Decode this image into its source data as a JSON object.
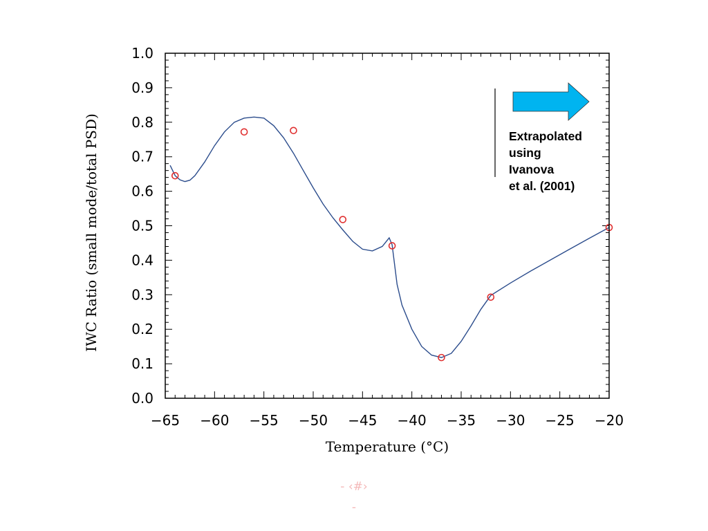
{
  "chart_data": {
    "type": "line",
    "title": "",
    "xlabel": "Temperature (°C)",
    "ylabel": "IWC Ratio (small mode/total PSD)",
    "xlim": [
      -65,
      -20
    ],
    "ylim": [
      0.0,
      1.0
    ],
    "x_ticks": [
      -65,
      -60,
      -55,
      -50,
      -45,
      -40,
      -35,
      -30,
      -25,
      -20
    ],
    "x_tick_labels": [
      "−65",
      "−60",
      "−55",
      "−50",
      "−45",
      "−40",
      "−35",
      "−30",
      "−25",
      "−20"
    ],
    "y_ticks": [
      0.0,
      0.1,
      0.2,
      0.3,
      0.4,
      0.5,
      0.6,
      0.7,
      0.8,
      0.9,
      1.0
    ],
    "y_tick_labels": [
      "0.0",
      "0.1",
      "0.2",
      "0.3",
      "0.4",
      "0.5",
      "0.6",
      "0.7",
      "0.8",
      "0.9",
      "1.0"
    ],
    "grid": false,
    "series": [
      {
        "kind": "scatter",
        "marker": "open-circle",
        "color": "#e03030",
        "x": [
          -64,
          -57,
          -52,
          -47,
          -42,
          -37,
          -32,
          -20
        ],
        "y": [
          0.645,
          0.772,
          0.776,
          0.518,
          0.442,
          0.118,
          0.293,
          0.495
        ]
      },
      {
        "kind": "line",
        "color": "#2b4c8c",
        "x": [
          -64.5,
          -64.0,
          -63.5,
          -63.0,
          -62.5,
          -62.0,
          -61.0,
          -60.0,
          -59.0,
          -58.0,
          -57.0,
          -56.0,
          -55.0,
          -54.0,
          -53.0,
          -52.0,
          -51.0,
          -50.0,
          -49.0,
          -48.0,
          -47.0,
          -46.0,
          -45.0,
          -44.0,
          -43.0,
          -42.3,
          -42.0,
          -41.5,
          -41.0,
          -40.0,
          -39.0,
          -38.0,
          -37.0,
          -36.0,
          -35.0,
          -34.0,
          -33.0,
          -32.0,
          -30.0,
          -28.0,
          -26.0,
          -24.0,
          -22.0,
          -20.0
        ],
        "y": [
          0.675,
          0.645,
          0.633,
          0.628,
          0.632,
          0.645,
          0.685,
          0.732,
          0.772,
          0.8,
          0.812,
          0.815,
          0.812,
          0.79,
          0.755,
          0.71,
          0.66,
          0.61,
          0.563,
          0.523,
          0.488,
          0.455,
          0.432,
          0.427,
          0.44,
          0.465,
          0.445,
          0.33,
          0.27,
          0.2,
          0.15,
          0.125,
          0.118,
          0.13,
          0.165,
          0.21,
          0.258,
          0.298,
          0.334,
          0.368,
          0.4,
          0.432,
          0.464,
          0.495
        ]
      }
    ]
  },
  "annotation": {
    "arrow_color": "#00b4f0",
    "lines": [
      "Extrapolated",
      "using",
      "Ivanova",
      "et al. (2001)"
    ]
  },
  "footer": {
    "page": "- ‹#›",
    "dash": "-",
    "color": "#f4b8b8"
  }
}
